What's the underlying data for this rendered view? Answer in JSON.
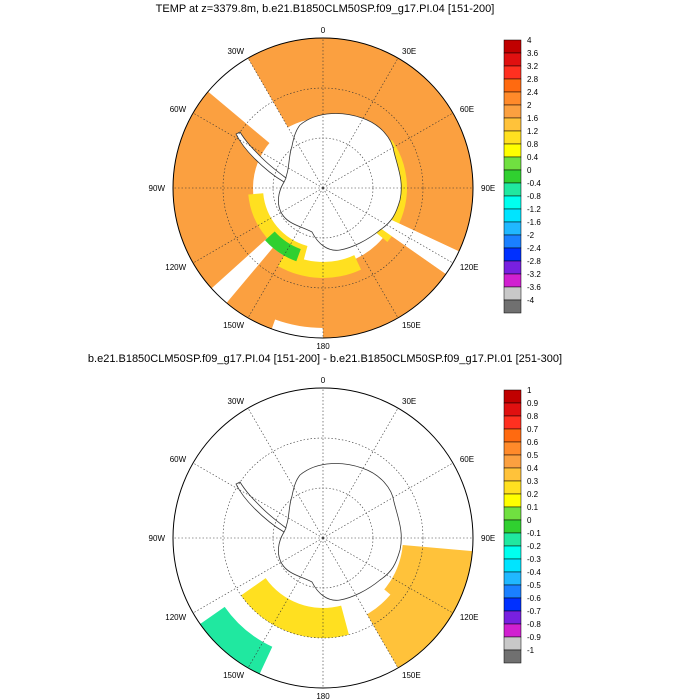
{
  "panels": [
    {
      "id": "top",
      "title": "TEMP at z=3379.8m, b.e21.B1850CLM50SP.f09_g17.PI.04 [151-200]",
      "colorbar": {
        "labels": [
          "4",
          "3.6",
          "3.2",
          "2.8",
          "2.4",
          "2",
          "1.6",
          "1.2",
          "0.8",
          "0.4",
          "0",
          "-0.4",
          "-0.8",
          "-1.2",
          "-1.6",
          "-2",
          "-2.4",
          "-2.8",
          "-3.2",
          "-3.6",
          "-4"
        ],
        "colors": [
          "#c00000",
          "#e01010",
          "#ff3020",
          "#ff6a10",
          "#ff8a2a",
          "#fba040",
          "#ffc23a",
          "#ffe020",
          "#ffff00",
          "#70e040",
          "#30d030",
          "#20e8a0",
          "#00ffee",
          "#00e4ff",
          "#20b8ff",
          "#1a80ff",
          "#0030ff",
          "#7820e0",
          "#d020d0",
          "#c8c8c8",
          "#707070"
        ]
      }
    },
    {
      "id": "bottom",
      "title": "b.e21.B1850CLM50SP.f09_g17.PI.04 [151-200] - b.e21.B1850CLM50SP.f09_g17.PI.01 [251-300]",
      "colorbar": {
        "labels": [
          "1",
          "0.9",
          "0.8",
          "0.7",
          "0.6",
          "0.5",
          "0.4",
          "0.3",
          "0.2",
          "0.1",
          "0",
          "-0.1",
          "-0.2",
          "-0.3",
          "-0.4",
          "-0.5",
          "-0.6",
          "-0.7",
          "-0.8",
          "-0.9",
          "-1"
        ],
        "colors": [
          "#c00000",
          "#e01010",
          "#ff3020",
          "#ff6a10",
          "#ff8a2a",
          "#fba040",
          "#ffc23a",
          "#ffe020",
          "#ffff00",
          "#70e040",
          "#30d030",
          "#20e8a0",
          "#00ffee",
          "#00e4ff",
          "#20b8ff",
          "#1a80ff",
          "#0030ff",
          "#7820e0",
          "#d020d0",
          "#c8c8c8",
          "#707070"
        ]
      }
    }
  ],
  "lon_labels": [
    "0",
    "30E",
    "60E",
    "90E",
    "120E",
    "150E",
    "180",
    "150W",
    "120W",
    "90W",
    "60W",
    "30W"
  ],
  "colors": {
    "top_ocean_base": "#fba040",
    "top_warm_band": "#ffe020",
    "top_green_patch": "#30d030",
    "bottom_ocean_base": "#70e040",
    "bottom_orange": "#ffc23a",
    "bottom_cyan": "#20e8a0"
  }
}
